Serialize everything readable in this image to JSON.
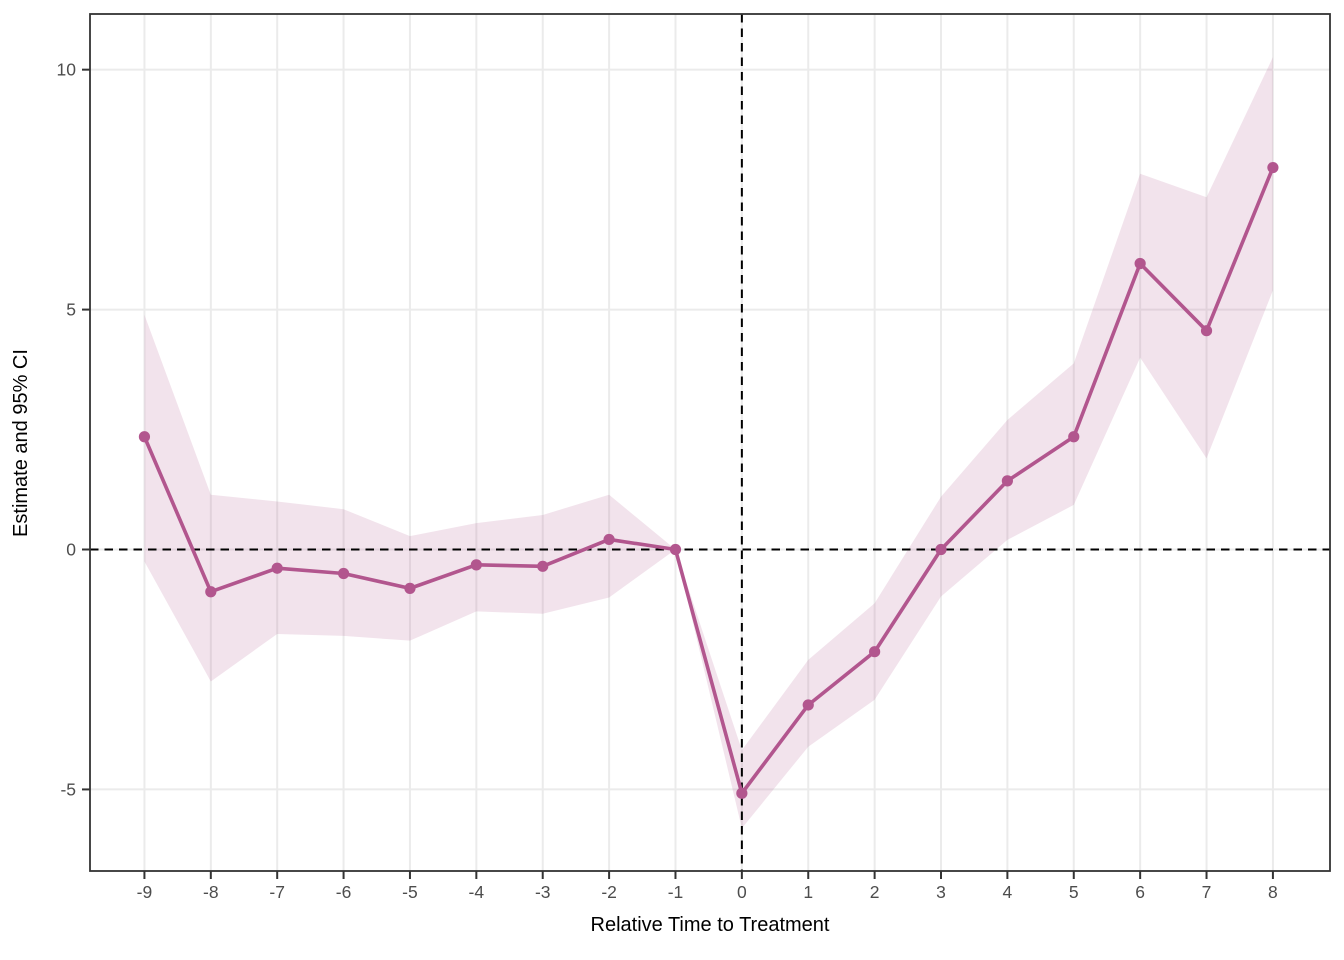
{
  "chart_data": {
    "type": "line",
    "title": "",
    "xlabel": "Relative Time to Treatment",
    "ylabel": "Estimate and 95% CI",
    "x": [
      -9,
      -8,
      -7,
      -6,
      -5,
      -4,
      -3,
      -2,
      -1,
      0,
      1,
      2,
      3,
      4,
      5,
      6,
      7,
      8
    ],
    "series": [
      {
        "name": "estimate",
        "values": [
          2.35,
          -0.88,
          -0.39,
          -0.5,
          -0.81,
          -0.32,
          -0.35,
          0.21,
          0,
          -5.08,
          -3.24,
          -2.13,
          0,
          1.43,
          2.35,
          5.96,
          4.56,
          7.96
        ]
      },
      {
        "name": "ci_lower",
        "values": [
          -0.25,
          -2.75,
          -1.76,
          -1.8,
          -1.9,
          -1.29,
          -1.34,
          -1.0,
          0,
          -5.81,
          -4.11,
          -3.13,
          -0.98,
          0.2,
          0.93,
          4.0,
          1.9,
          5.4
        ]
      },
      {
        "name": "ci_upper",
        "values": [
          4.89,
          1.14,
          1.0,
          0.84,
          0.28,
          0.55,
          0.72,
          1.14,
          0,
          -4.18,
          -2.3,
          -1.12,
          1.1,
          2.7,
          3.88,
          7.83,
          7.34,
          10.26
        ]
      }
    ],
    "x_ticks": [
      -9,
      -8,
      -7,
      -6,
      -5,
      -4,
      -3,
      -2,
      -1,
      0,
      1,
      2,
      3,
      4,
      5,
      6,
      7,
      8
    ],
    "y_ticks": [
      -5,
      0,
      5,
      10
    ],
    "xlim": [
      -9.82,
      8.86
    ],
    "ylim": [
      -6.7,
      11.16
    ],
    "grid": "major",
    "legend": "none",
    "reference_lines": [
      {
        "orientation": "horizontal",
        "value": 0,
        "style": "dashed"
      },
      {
        "orientation": "vertical",
        "value": 0,
        "style": "dashed"
      }
    ],
    "colors": {
      "line": "#b2568e",
      "marker": "#b2568e",
      "band_fill": "#b2568e",
      "band_opacity": 0.17,
      "grid": "#ebebeb",
      "panel_border": "#333333",
      "tick": "#333333",
      "axis_text": "#4d4d4d",
      "axis_title": "#000000",
      "reference_line": "#000000",
      "background": "#ffffff"
    }
  }
}
